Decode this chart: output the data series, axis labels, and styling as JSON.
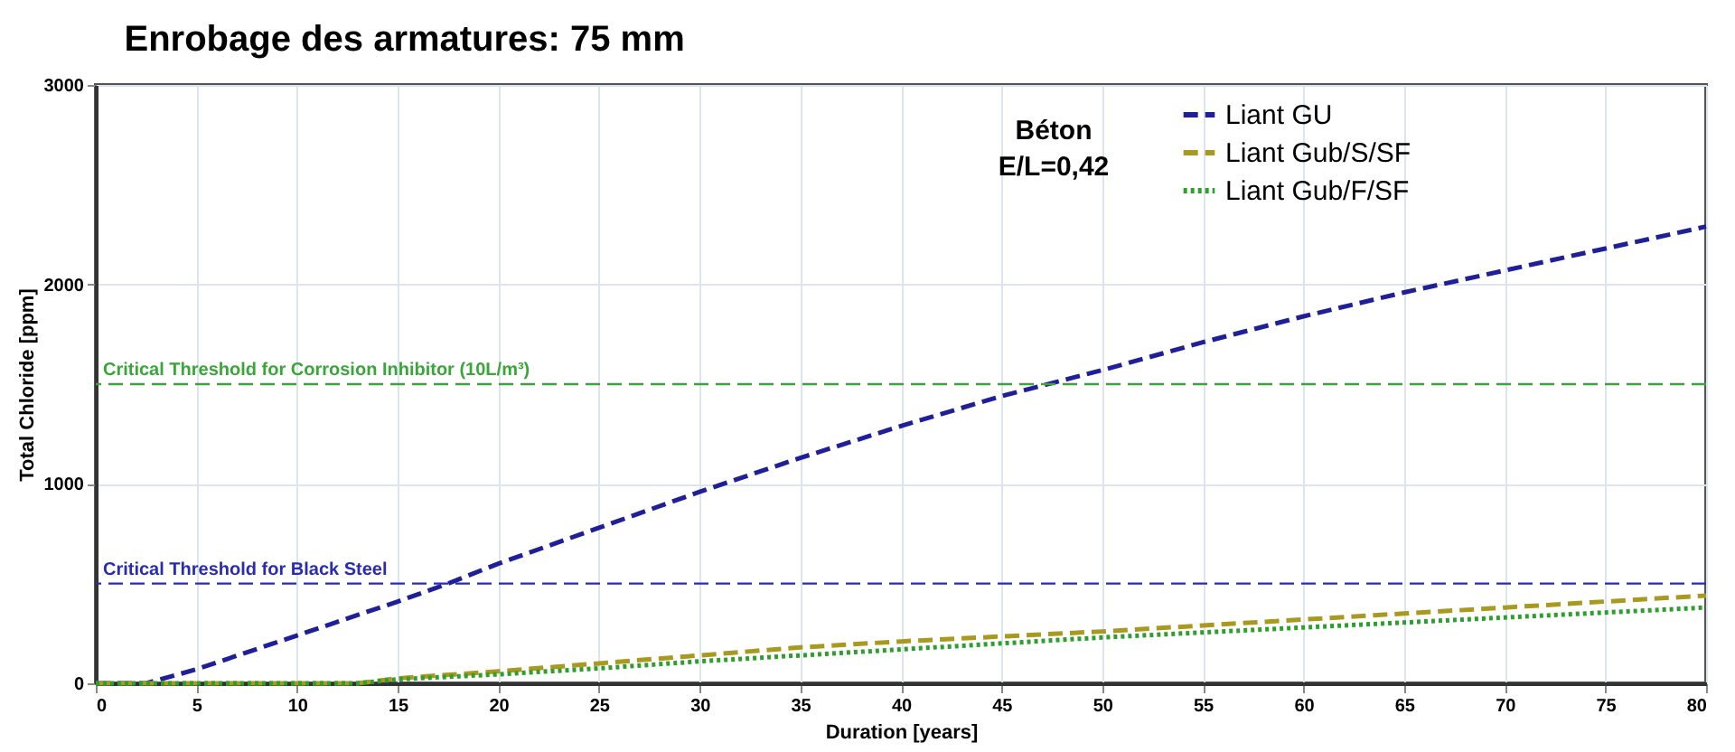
{
  "chart_data": {
    "type": "line",
    "title": "Enrobage des armatures: 75 mm",
    "xlabel": "Duration [years]",
    "ylabel": "Total Chloride  [ppm]",
    "xlim": [
      0,
      80
    ],
    "ylim": [
      0,
      3000
    ],
    "xticks": [
      0,
      5,
      10,
      15,
      20,
      25,
      30,
      35,
      40,
      45,
      50,
      55,
      60,
      65,
      70,
      75,
      80
    ],
    "yticks": [
      0,
      1000,
      2000,
      3000
    ],
    "grid": true,
    "legend": "top right",
    "annotations": [
      "Béton",
      "E/L=0,42"
    ],
    "ref_lines": [
      {
        "axis": "y",
        "value": 1500,
        "label": "Critical Threshold for Corrosion Inhibitor (10L/m³)",
        "color": "#3aa63a",
        "line_style": "dashed"
      },
      {
        "axis": "y",
        "value": 500,
        "label": "Critical Threshold for Black Steel",
        "color": "#2b2bb0",
        "line_style": "dashed"
      }
    ],
    "series": [
      {
        "name": "Liant GU",
        "color": "#1f1f9a",
        "line_style": "dashed",
        "x": [
          0,
          2.5,
          5,
          10,
          15,
          17.5,
          20,
          25,
          30,
          35,
          40,
          45,
          50,
          55,
          60,
          65,
          70,
          75,
          80
        ],
        "values": [
          0,
          0,
          70,
          240,
          410,
          500,
          600,
          780,
          960,
          1130,
          1290,
          1440,
          1570,
          1710,
          1840,
          1960,
          2070,
          2180,
          2290
        ]
      },
      {
        "name": "Liant Gub/S/SF",
        "color": "#a89a1e",
        "line_style": "dashed",
        "x": [
          0,
          13,
          15,
          20,
          25,
          30,
          35,
          40,
          45,
          50,
          55,
          60,
          65,
          70,
          75,
          80
        ],
        "values": [
          0,
          0,
          25,
          60,
          100,
          140,
          180,
          210,
          235,
          260,
          290,
          320,
          350,
          380,
          410,
          440
        ]
      },
      {
        "name": "Liant Gub/F/SF",
        "color": "#2e9e2e",
        "line_style": "dotted",
        "x": [
          0,
          13,
          15,
          20,
          25,
          30,
          35,
          40,
          45,
          50,
          55,
          60,
          65,
          70,
          75,
          80
        ],
        "values": [
          0,
          0,
          20,
          45,
          75,
          110,
          140,
          170,
          200,
          230,
          255,
          280,
          305,
          330,
          355,
          380
        ]
      }
    ]
  }
}
